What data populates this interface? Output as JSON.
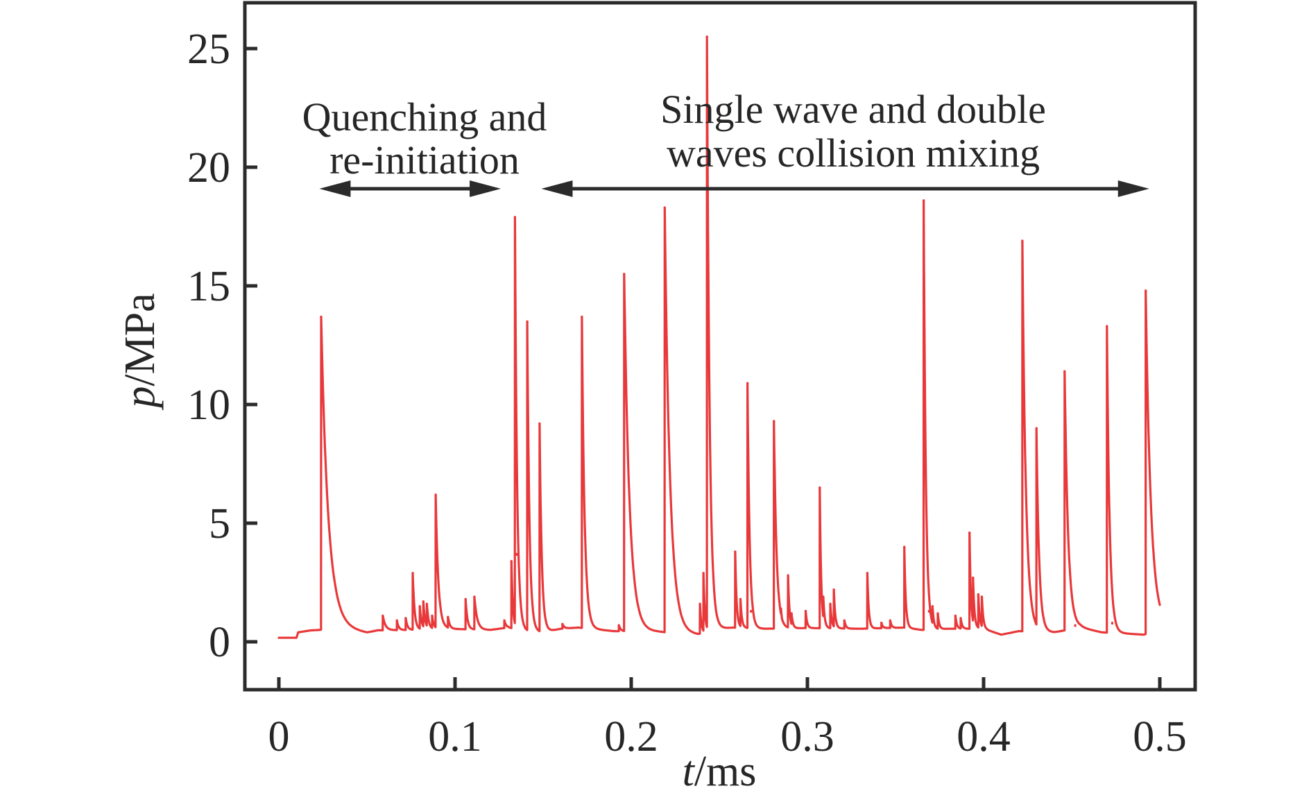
{
  "chart_data": {
    "type": "line",
    "title": "",
    "xlabel_italic": "t",
    "xlabel_unit": "/ms",
    "ylabel_italic": "p",
    "ylabel_unit": "/MPa",
    "xlim": [
      -0.015,
      0.52
    ],
    "ylim": [
      -2,
      27
    ],
    "xticks": [
      0,
      0.1,
      0.2,
      0.3,
      0.4,
      0.5
    ],
    "xtick_labels": [
      "0",
      "0.1",
      "0.2",
      "0.3",
      "0.4",
      "0.5"
    ],
    "yticks": [
      0,
      5,
      10,
      15,
      20,
      25
    ],
    "ytick_labels": [
      "0",
      "5",
      "10",
      "15",
      "20",
      "25"
    ],
    "grid": false,
    "legend": null,
    "series": [
      {
        "name": "pressure",
        "color": "#e8383a",
        "baseline": [
          [
            0.0,
            0.17
          ],
          [
            0.01,
            0.17
          ],
          [
            0.011,
            0.4
          ],
          [
            0.018,
            0.48
          ],
          [
            0.023,
            0.5
          ],
          [
            0.032,
            0.6
          ],
          [
            0.05,
            0.38
          ],
          [
            0.056,
            0.48
          ],
          [
            0.075,
            0.5
          ],
          [
            0.095,
            0.55
          ],
          [
            0.12,
            0.5
          ],
          [
            0.13,
            0.6
          ],
          [
            0.14,
            0.45
          ],
          [
            0.15,
            0.4
          ],
          [
            0.16,
            0.55
          ],
          [
            0.17,
            0.6
          ],
          [
            0.19,
            0.45
          ],
          [
            0.215,
            0.42
          ],
          [
            0.238,
            0.3
          ],
          [
            0.25,
            0.55
          ],
          [
            0.258,
            0.6
          ],
          [
            0.275,
            0.55
          ],
          [
            0.3,
            0.58
          ],
          [
            0.33,
            0.55
          ],
          [
            0.355,
            0.6
          ],
          [
            0.365,
            0.5
          ],
          [
            0.38,
            0.55
          ],
          [
            0.4,
            0.55
          ],
          [
            0.41,
            0.3
          ],
          [
            0.42,
            0.45
          ],
          [
            0.44,
            0.4
          ],
          [
            0.455,
            0.6
          ],
          [
            0.467,
            0.4
          ],
          [
            0.48,
            0.35
          ],
          [
            0.491,
            0.3
          ],
          [
            0.5,
            0.55
          ]
        ],
        "peaks": [
          {
            "t": 0.024,
            "p": 13.7,
            "decay": 0.004
          },
          {
            "t": 0.059,
            "p": 1.1,
            "decay": 0.0015
          },
          {
            "t": 0.067,
            "p": 0.9,
            "decay": 0.001
          },
          {
            "t": 0.072,
            "p": 1.0,
            "decay": 0.001
          },
          {
            "t": 0.076,
            "p": 2.9,
            "decay": 0.001
          },
          {
            "t": 0.08,
            "p": 1.5,
            "decay": 0.001
          },
          {
            "t": 0.082,
            "p": 1.7,
            "decay": 0.001
          },
          {
            "t": 0.084,
            "p": 1.6,
            "decay": 0.001
          },
          {
            "t": 0.087,
            "p": 1.1,
            "decay": 0.001
          },
          {
            "t": 0.089,
            "p": 6.2,
            "decay": 0.0015
          },
          {
            "t": 0.096,
            "p": 1.05,
            "decay": 0.001
          },
          {
            "t": 0.106,
            "p": 1.8,
            "decay": 0.001
          },
          {
            "t": 0.111,
            "p": 1.9,
            "decay": 0.0015
          },
          {
            "t": 0.128,
            "p": 0.9,
            "decay": 0.001
          },
          {
            "t": 0.132,
            "p": 3.4,
            "decay": 0.0008
          },
          {
            "t": 0.134,
            "p": 17.9,
            "decay": 0.0012
          },
          {
            "t": 0.135,
            "p": 3.7,
            "decay": 0.001
          },
          {
            "t": 0.141,
            "p": 13.5,
            "decay": 0.0012
          },
          {
            "t": 0.148,
            "p": 9.2,
            "decay": 0.0012
          },
          {
            "t": 0.161,
            "p": 0.75,
            "decay": 0.001
          },
          {
            "t": 0.172,
            "p": 13.7,
            "decay": 0.0015
          },
          {
            "t": 0.193,
            "p": 0.7,
            "decay": 0.001
          },
          {
            "t": 0.196,
            "p": 15.5,
            "decay": 0.003
          },
          {
            "t": 0.219,
            "p": 18.3,
            "decay": 0.003
          },
          {
            "t": 0.239,
            "p": 1.6,
            "decay": 0.0008
          },
          {
            "t": 0.241,
            "p": 2.9,
            "decay": 0.0008
          },
          {
            "t": 0.243,
            "p": 25.5,
            "decay": 0.0015
          },
          {
            "t": 0.259,
            "p": 3.8,
            "decay": 0.0008
          },
          {
            "t": 0.262,
            "p": 1.8,
            "decay": 0.0008
          },
          {
            "t": 0.266,
            "p": 10.9,
            "decay": 0.0012
          },
          {
            "t": 0.268,
            "p": 1.3,
            "decay": 0.001
          },
          {
            "t": 0.281,
            "p": 9.3,
            "decay": 0.0015
          },
          {
            "t": 0.285,
            "p": 1.4,
            "decay": 0.0008
          },
          {
            "t": 0.289,
            "p": 2.8,
            "decay": 0.0008
          },
          {
            "t": 0.291,
            "p": 1.2,
            "decay": 0.0008
          },
          {
            "t": 0.299,
            "p": 1.3,
            "decay": 0.0008
          },
          {
            "t": 0.307,
            "p": 6.5,
            "decay": 0.0008
          },
          {
            "t": 0.309,
            "p": 1.9,
            "decay": 0.0008
          },
          {
            "t": 0.313,
            "p": 1.6,
            "decay": 0.0008
          },
          {
            "t": 0.315,
            "p": 2.2,
            "decay": 0.0008
          },
          {
            "t": 0.321,
            "p": 0.9,
            "decay": 0.0008
          },
          {
            "t": 0.334,
            "p": 2.9,
            "decay": 0.0008
          },
          {
            "t": 0.342,
            "p": 0.8,
            "decay": 0.0008
          },
          {
            "t": 0.347,
            "p": 0.9,
            "decay": 0.0008
          },
          {
            "t": 0.355,
            "p": 4.0,
            "decay": 0.0008
          },
          {
            "t": 0.366,
            "p": 18.6,
            "decay": 0.0012
          },
          {
            "t": 0.369,
            "p": 1.3,
            "decay": 0.0008
          },
          {
            "t": 0.371,
            "p": 1.5,
            "decay": 0.0008
          },
          {
            "t": 0.374,
            "p": 1.2,
            "decay": 0.0008
          },
          {
            "t": 0.384,
            "p": 1.1,
            "decay": 0.0008
          },
          {
            "t": 0.387,
            "p": 1.0,
            "decay": 0.0008
          },
          {
            "t": 0.392,
            "p": 4.6,
            "decay": 0.0008
          },
          {
            "t": 0.394,
            "p": 2.7,
            "decay": 0.0008
          },
          {
            "t": 0.397,
            "p": 2.0,
            "decay": 0.0008
          },
          {
            "t": 0.399,
            "p": 1.9,
            "decay": 0.0008
          },
          {
            "t": 0.422,
            "p": 16.9,
            "decay": 0.002
          },
          {
            "t": 0.43,
            "p": 9.0,
            "decay": 0.0015
          },
          {
            "t": 0.446,
            "p": 11.4,
            "decay": 0.002
          },
          {
            "t": 0.452,
            "p": 0.7,
            "decay": 0.001
          },
          {
            "t": 0.47,
            "p": 13.3,
            "decay": 0.0015
          },
          {
            "t": 0.473,
            "p": 0.8,
            "decay": 0.001
          },
          {
            "t": 0.492,
            "p": 14.8,
            "decay": 0.003
          }
        ]
      }
    ],
    "annotations": [
      {
        "lines": [
          "Quenching and",
          "re-initiation"
        ],
        "arrow_from_t": 0.023,
        "arrow_to_t": 0.126,
        "arrow_p": 19.0
      },
      {
        "lines": [
          "Single wave and double",
          "waves collision mixing"
        ],
        "arrow_from_t": 0.149,
        "arrow_to_t": 0.494,
        "arrow_p": 19.0
      }
    ]
  }
}
